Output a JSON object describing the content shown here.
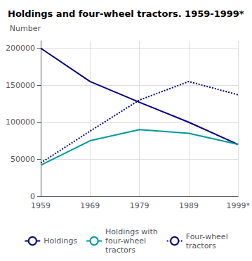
{
  "chart_data": {
    "type": "line",
    "title": "Holdings and four-wheel tractors. 1959-1999*",
    "ylabel": "Number",
    "categories": [
      "1959",
      "1969",
      "1979",
      "1989",
      "1999*"
    ],
    "series": [
      {
        "name": "Holdings",
        "color": "#000080",
        "line_style": "solid",
        "values": [
          200000,
          155000,
          127000,
          100000,
          70000
        ]
      },
      {
        "name": "Holdings with\nfour-wheel\ntractors",
        "color": "#009999",
        "line_style": "solid",
        "values": [
          42000,
          75000,
          90000,
          85000,
          70000
        ]
      },
      {
        "name": "Four-wheel\ntractors",
        "color": "#000080",
        "line_style": "dotted",
        "values": [
          45000,
          88000,
          130000,
          155000,
          137000
        ]
      }
    ],
    "ylim": [
      0,
      210000
    ],
    "yticks": [
      0,
      50000,
      100000,
      150000,
      200000
    ],
    "grid": true,
    "legend": "bottom"
  }
}
